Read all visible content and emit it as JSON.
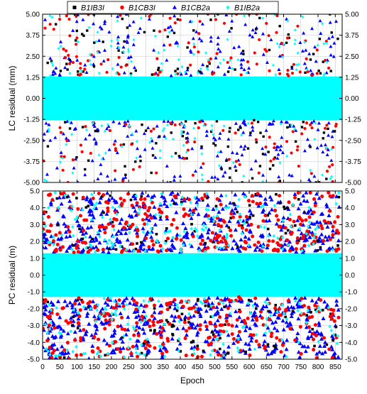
{
  "chart_data": [
    {
      "type": "scatter",
      "panel": "top",
      "ylabel": "LC residual (mm)",
      "xlabel": "",
      "xlim": [
        0,
        870
      ],
      "ylim": [
        -5.0,
        5.0
      ],
      "x_ticks": [
        0,
        50,
        100,
        150,
        200,
        250,
        300,
        350,
        400,
        450,
        500,
        550,
        600,
        650,
        700,
        750,
        800,
        850
      ],
      "y_ticks": [
        -5.0,
        -3.75,
        -2.5,
        -1.25,
        0.0,
        1.25,
        2.5,
        3.75,
        5.0
      ],
      "y_tick_labels": [
        "-5.00",
        "-3.75",
        "-2.50",
        "-1.25",
        "0.00",
        "1.25",
        "2.50",
        "3.75",
        "5.00"
      ],
      "grid": true,
      "legend": {
        "placement": "top-center",
        "orientation": "horizontal"
      },
      "series": [
        {
          "name": "B1IB3I",
          "color": "#000000",
          "marker": "square",
          "band": [
            -1.3,
            1.3
          ],
          "tail_extent": 5.0
        },
        {
          "name": "B1CB3I",
          "color": "#ff0000",
          "marker": "circle",
          "band": [
            -1.3,
            1.3
          ],
          "tail_extent": 5.0
        },
        {
          "name": "B1CB2a",
          "color": "#0000ff",
          "marker": "triangle",
          "band": [
            -1.3,
            1.3
          ],
          "tail_extent": 5.0
        },
        {
          "name": "B1IB2a",
          "color": "#00ffff",
          "marker": "diamond",
          "band": [
            -1.3,
            1.3
          ],
          "tail_extent": 5.0
        }
      ]
    },
    {
      "type": "scatter",
      "panel": "bottom",
      "ylabel": "PC residual (m)",
      "xlabel": "Epoch",
      "xlim": [
        0,
        870
      ],
      "ylim": [
        -5.0,
        5.0
      ],
      "x_ticks": [
        0,
        50,
        100,
        150,
        200,
        250,
        300,
        350,
        400,
        450,
        500,
        550,
        600,
        650,
        700,
        750,
        800,
        850
      ],
      "y_ticks": [
        -5.0,
        -4.0,
        -3.0,
        -2.0,
        -1.0,
        0.0,
        1.0,
        2.0,
        3.0,
        4.0,
        5.0
      ],
      "y_tick_labels": [
        "-5.0",
        "-4.0",
        "-3.0",
        "-2.0",
        "-1.0",
        "0.0",
        "1.0",
        "2.0",
        "3.0",
        "4.0",
        "5.0"
      ],
      "grid": true,
      "series": [
        {
          "name": "B1IB3I",
          "color": "#000000",
          "marker": "square",
          "band": [
            -1.3,
            1.3
          ],
          "tail_extent": 5.0
        },
        {
          "name": "B1CB3I",
          "color": "#ff0000",
          "marker": "circle",
          "band": [
            -1.3,
            1.3
          ],
          "tail_extent": 5.0
        },
        {
          "name": "B1CB2a",
          "color": "#0000ff",
          "marker": "triangle",
          "band": [
            -1.3,
            1.3
          ],
          "tail_extent": 5.0
        },
        {
          "name": "B1IB2a",
          "color": "#00ffff",
          "marker": "diamond",
          "band": [
            -1.3,
            1.3
          ],
          "tail_extent": 5.0
        }
      ]
    }
  ]
}
